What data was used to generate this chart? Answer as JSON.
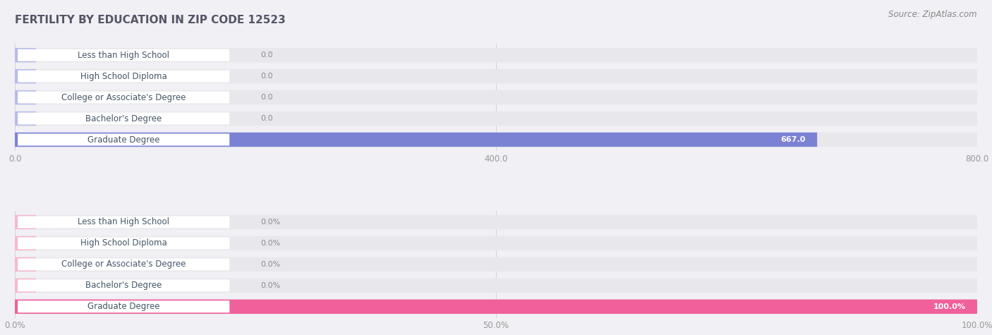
{
  "title": "FERTILITY BY EDUCATION IN ZIP CODE 12523",
  "source": "Source: ZipAtlas.com",
  "categories": [
    "Less than High School",
    "High School Diploma",
    "College or Associate's Degree",
    "Bachelor's Degree",
    "Graduate Degree"
  ],
  "abs_values": [
    0.0,
    0.0,
    0.0,
    0.0,
    667.0
  ],
  "abs_max": 800.0,
  "abs_ticks": [
    0.0,
    400.0,
    800.0
  ],
  "pct_values": [
    0.0,
    0.0,
    0.0,
    0.0,
    100.0
  ],
  "pct_max": 100.0,
  "pct_ticks": [
    0.0,
    50.0,
    100.0
  ],
  "abs_bar_color_light": "#b8bce8",
  "abs_bar_color_dark": "#7b82d4",
  "pct_bar_color_light": "#f7b8cc",
  "pct_bar_color_dark": "#f0609a",
  "label_bg_color": "#ffffff",
  "bar_bg_color": "#e8e8ec",
  "grid_color": "#cccccc",
  "title_color": "#555566",
  "label_text_color": "#445566",
  "value_text_color_inside": "#ffffff",
  "value_text_color_outside": "#888899",
  "tick_color": "#999999",
  "source_color": "#888888",
  "bar_height": 0.68,
  "label_fontsize": 8.5,
  "value_fontsize": 8.0,
  "title_fontsize": 11,
  "tick_fontsize": 8.5,
  "source_fontsize": 8.5,
  "fig_bg": "#f0f0f5"
}
